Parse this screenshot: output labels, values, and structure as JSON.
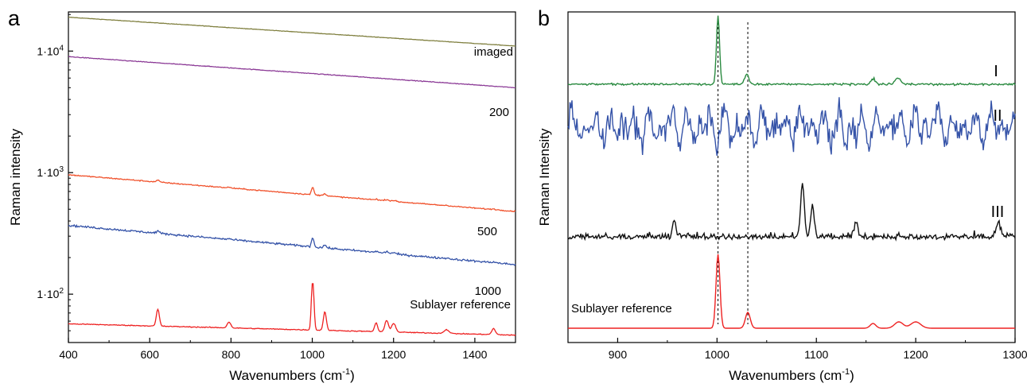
{
  "chart_data": [
    {
      "panel": "a",
      "type": "line",
      "xlabel": "Wavenumbers",
      "xlabel_unit": "(cm",
      "xlabel_sup": "-1",
      "xlabel_close": ")",
      "ylabel": "Raman intensity",
      "y_scale": "log",
      "xlim": [
        400,
        1500
      ],
      "ylim": [
        40,
        21000
      ],
      "xticks": [
        400,
        600,
        800,
        1000,
        1200,
        1400
      ],
      "yticks": [
        {
          "value": 100,
          "base": "1·10",
          "exp": "2"
        },
        {
          "value": 1000,
          "base": "1·10",
          "exp": "3"
        },
        {
          "value": 10000,
          "base": "1·10",
          "exp": "4"
        }
      ],
      "peaks": [
        620,
        795,
        1001,
        1031,
        1157,
        1183,
        1200,
        1330,
        1446
      ],
      "series": [
        {
          "name": "imaged",
          "color": "#808040",
          "start": 19000,
          "end": 11000,
          "noise": 0.004,
          "peak_amp": 0
        },
        {
          "name": "200",
          "color": "#8b3a96",
          "start": 9000,
          "end": 5000,
          "noise": 0.006,
          "peak_amp": 0
        },
        {
          "name": "500",
          "color": "#f0502a",
          "start": 960,
          "end": 480,
          "noise": 0.01,
          "peak_amp": 0.28
        },
        {
          "name": "1000",
          "color": "#3553a8",
          "start": 368,
          "end": 175,
          "noise": 0.018,
          "peak_amp": 0.35
        },
        {
          "name": "Sublayer  reference",
          "color": "#ee2222",
          "start": 57,
          "end": 46,
          "noise": 0.008,
          "peak_amp": 1.0
        }
      ],
      "reference_label_color": "#ee2222"
    },
    {
      "panel": "b",
      "type": "line",
      "xlabel": "Wavenumbers",
      "xlabel_unit": "(cm",
      "xlabel_sup": "-1",
      "xlabel_close": ")",
      "ylabel": "Raman Intensity",
      "xlim": [
        850,
        1300
      ],
      "xticks": [
        900,
        1000,
        1100,
        1200,
        1300
      ],
      "reference_lines": [
        1001,
        1031
      ],
      "series": [
        {
          "name": "I",
          "color": "#2a8a40"
        },
        {
          "name": "II",
          "color": "#3553a8"
        },
        {
          "name": "III",
          "color": "#111111"
        },
        {
          "name": "Sublayer reference",
          "color": "#ee2222"
        }
      ]
    }
  ]
}
